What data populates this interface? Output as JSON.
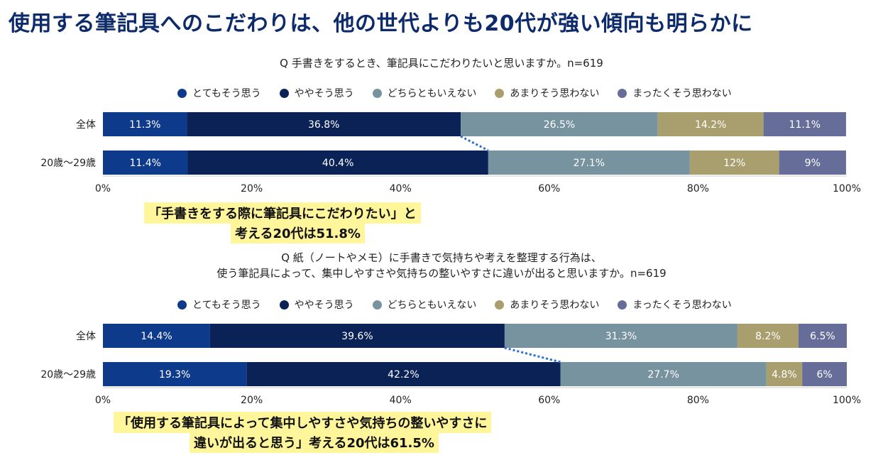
{
  "headline": "使用する筆記具へのこだわりは、他の世代よりも20代が強い傾向も明らかに",
  "legend": [
    {
      "label": "とてもそう思う",
      "color": "#0e3a8c"
    },
    {
      "label": "ややそう思う",
      "color": "#0a2255"
    },
    {
      "label": "どちらともいえない",
      "color": "#7893a0"
    },
    {
      "label": "あまりそう思わない",
      "color": "#a99e6e"
    },
    {
      "label": "まったくそう思わない",
      "color": "#676d99"
    }
  ],
  "chart_data": [
    {
      "type": "bar",
      "orientation": "horizontal-stacked",
      "title": "Q 手書きをするとき、筆記具にこだわりたいと思いますか。n=619",
      "categories": [
        "全体",
        "20歳〜29歳"
      ],
      "series": [
        {
          "name": "とてもそう思う",
          "values": [
            11.3,
            11.4
          ],
          "labels": [
            "11.3%",
            "11.4%"
          ]
        },
        {
          "name": "ややそう思う",
          "values": [
            36.8,
            40.4
          ],
          "labels": [
            "36.8%",
            "40.4%"
          ]
        },
        {
          "name": "どちらともいえない",
          "values": [
            26.5,
            27.1
          ],
          "labels": [
            "26.5%",
            "27.1%"
          ]
        },
        {
          "name": "あまりそう思わない",
          "values": [
            14.2,
            12
          ],
          "labels": [
            "14.2%",
            "12%"
          ]
        },
        {
          "name": "まったくそう思わない",
          "values": [
            11.1,
            9
          ],
          "labels": [
            "11.1%",
            "9%"
          ]
        }
      ],
      "xlim": [
        0,
        100
      ],
      "ticks": [
        "0%",
        "20%",
        "40%",
        "60%",
        "80%",
        "100%"
      ],
      "callout": [
        "「手書きをする際に筆記具にこだわりたい」と",
        "考える20代は51.8%"
      ]
    },
    {
      "type": "bar",
      "orientation": "horizontal-stacked",
      "title": [
        "Q 紙（ノートやメモ）に手書きで気持ちや考えを整理する行為は、",
        "使う筆記具によって、集中しやすさや気持ちの整いやすさに違いが出ると思いますか。n=619"
      ],
      "categories": [
        "全体",
        "20歳〜29歳"
      ],
      "series": [
        {
          "name": "とてもそう思う",
          "values": [
            14.4,
            19.3
          ],
          "labels": [
            "14.4%",
            "19.3%"
          ]
        },
        {
          "name": "ややそう思う",
          "values": [
            39.6,
            42.2
          ],
          "labels": [
            "39.6%",
            "42.2%"
          ]
        },
        {
          "name": "どちらともいえない",
          "values": [
            31.3,
            27.7
          ],
          "labels": [
            "31.3%",
            "27.7%"
          ]
        },
        {
          "name": "あまりそう思わない",
          "values": [
            8.2,
            4.8
          ],
          "labels": [
            "8.2%",
            "4.8%"
          ]
        },
        {
          "name": "まったくそう思わない",
          "values": [
            6.5,
            6
          ],
          "labels": [
            "6.5%",
            "6%"
          ]
        }
      ],
      "xlim": [
        0,
        100
      ],
      "ticks": [
        "0%",
        "20%",
        "40%",
        "60%",
        "80%",
        "100%"
      ],
      "callout": [
        "「使用する筆記具によって集中しやすさや気持ちの整いやすさに",
        "違いが出ると思う」考える20代は61.5%"
      ]
    }
  ]
}
